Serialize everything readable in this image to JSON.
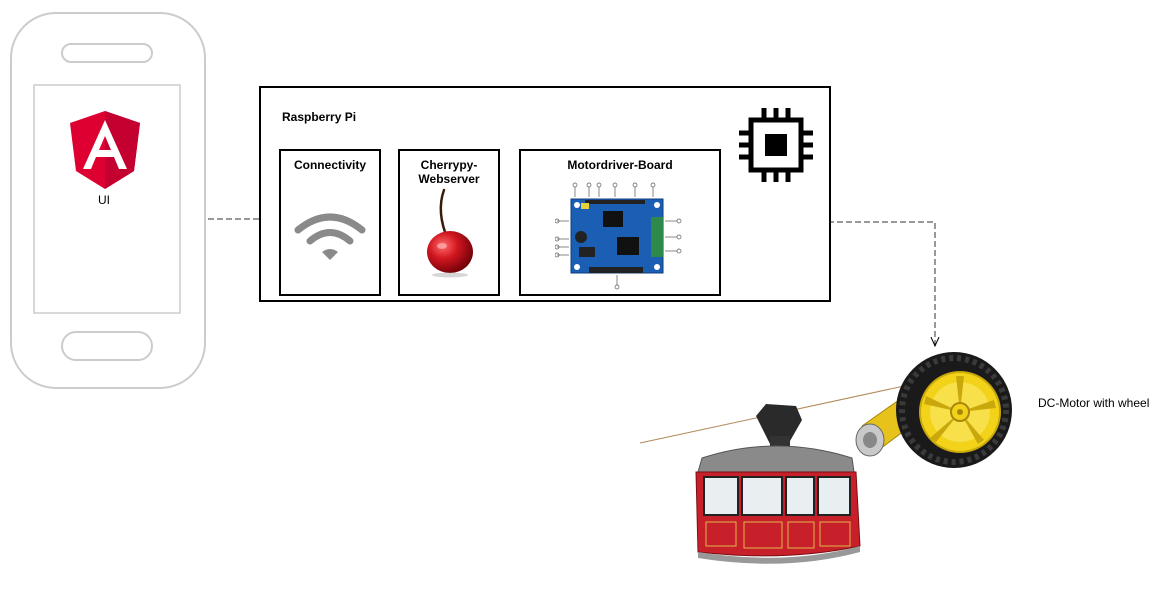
{
  "phone": {
    "app_label": "UI"
  },
  "raspberry": {
    "title": "Raspberry Pi",
    "connectivity_title": "Connectivity",
    "webserver_title_line1": "Cherrypy-",
    "webserver_title_line2": "Webserver",
    "motorboard_title": "Motordriver-Board"
  },
  "motor": {
    "label": "DC-Motor with wheel"
  },
  "icons": {
    "phone": "smartphone-outline-icon",
    "angular": "angular-logo-icon",
    "chip": "cpu-chip-icon",
    "wifi": "wifi-icon",
    "cherry": "cherry-icon",
    "board": "motor-driver-board-image",
    "gondola": "cable-car-gondola-image",
    "wheel": "dc-motor-wheel-image"
  },
  "colors": {
    "angular_red": "#dd0031",
    "angular_dark": "#c3002f",
    "wifi_gray": "#8a8a8a",
    "cherry_red": "#c0141c",
    "board_blue": "#1a5fb4",
    "gondola_red": "#c8202a",
    "wheel_yellow": "#f3d21a",
    "phone_gray": "#cccccc"
  }
}
